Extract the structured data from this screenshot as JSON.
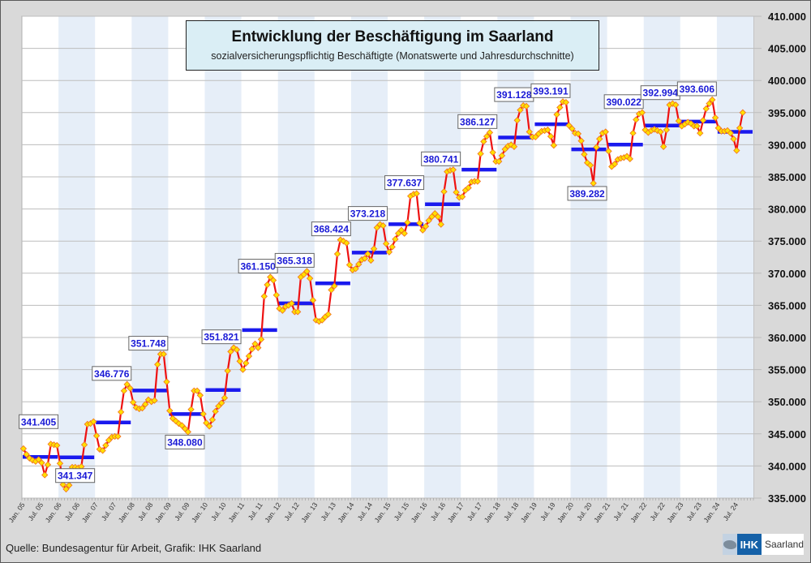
{
  "chart_data": {
    "type": "line",
    "title": "Entwicklung der Beschäftigung im Saarland",
    "subtitle": "sozialversicherungspflichtig Beschäftigte (Monatswerte und Jahresdurchschnitte)",
    "xlabel": "",
    "ylabel": "",
    "ylim": [
      335000,
      410000
    ],
    "y_ticks": [
      "335.000",
      "340.000",
      "345.000",
      "350.000",
      "355.000",
      "360.000",
      "365.000",
      "370.000",
      "375.000",
      "380.000",
      "385.000",
      "390.000",
      "395.000",
      "400.000",
      "405.000",
      "410.000"
    ],
    "y_tick_values": [
      335000,
      340000,
      345000,
      350000,
      355000,
      360000,
      365000,
      370000,
      375000,
      380000,
      385000,
      390000,
      395000,
      400000,
      405000,
      410000
    ],
    "y_axis_position": "right",
    "grid": true,
    "x_tick_labels": [
      "Jan. 05",
      "Jul. 05",
      "Jan. 06",
      "Jul. 06",
      "Jan. 07",
      "Jul. 07",
      "Jan. 08",
      "Jul. 08",
      "Jan. 09",
      "Jul. 09",
      "Jan. 10",
      "Jul. 10",
      "Jan. 11",
      "Jul. 11",
      "Jan. 12",
      "Jul. 12",
      "Jan. 13",
      "Jul. 13",
      "Jan. 14",
      "Jul. 14",
      "Jan. 15",
      "Jul. 15",
      "Jan. 16",
      "Jul. 16",
      "Jan. 17",
      "Jul. 17",
      "Jan. 18",
      "Jul. 18",
      "Jan. 19",
      "Jul. 19",
      "Jan. 20",
      "Jul. 20",
      "Jan. 21",
      "Jul. 21",
      "Jan. 22",
      "Jul. 22",
      "Jan. 23",
      "Jul. 23",
      "Jan. 24",
      "Jul. 24"
    ],
    "years": [
      2005,
      2006,
      2007,
      2008,
      2009,
      2010,
      2011,
      2012,
      2013,
      2014,
      2015,
      2016,
      2017,
      2018,
      2019,
      2020,
      2021,
      2022,
      2023,
      2024
    ],
    "series": [
      {
        "name": "Monatswerte",
        "color": "#ee1111",
        "marker_color": "#ffe000",
        "values": [
          342700,
          341800,
          341200,
          340900,
          340700,
          341000,
          340500,
          338600,
          340200,
          343400,
          343300,
          343200,
          340400,
          337100,
          336400,
          337000,
          339800,
          339800,
          339700,
          339900,
          343300,
          346500,
          346600,
          346900,
          344700,
          342600,
          342400,
          343200,
          344000,
          344500,
          344600,
          344600,
          348400,
          351700,
          352700,
          352100,
          349900,
          349100,
          348900,
          349000,
          349600,
          350300,
          350000,
          350200,
          355800,
          357400,
          357400,
          353100,
          348600,
          347400,
          347000,
          346600,
          346300,
          345800,
          345300,
          348800,
          351700,
          351700,
          351000,
          348100,
          346700,
          346200,
          347200,
          348500,
          349300,
          349800,
          350600,
          354800,
          357800,
          358400,
          358100,
          356300,
          355000,
          356000,
          357100,
          358200,
          359000,
          358400,
          359700,
          366400,
          368200,
          369400,
          368900,
          366600,
          364500,
          364200,
          364800,
          365000,
          365300,
          364000,
          364000,
          369400,
          369800,
          370300,
          369200,
          365800,
          362700,
          362500,
          362700,
          363200,
          363600,
          367400,
          368000,
          373000,
          375200,
          375000,
          374700,
          371300,
          370500,
          370700,
          371400,
          372100,
          372300,
          373000,
          372000,
          373800,
          377100,
          377600,
          377400,
          374600,
          373300,
          374100,
          375300,
          376200,
          376700,
          376200,
          377900,
          382000,
          382300,
          382400,
          377800,
          376700,
          377300,
          378200,
          378800,
          379300,
          378800,
          377600,
          382700,
          385800,
          386000,
          386100,
          382600,
          381800,
          381900,
          382900,
          383300,
          384200,
          384300,
          384300,
          388600,
          390500,
          391300,
          391900,
          388800,
          387400,
          387400,
          388300,
          389300,
          389800,
          390000,
          389700,
          393800,
          395400,
          396100,
          396000,
          392000,
          391200,
          391200,
          391700,
          392100,
          392200,
          392300,
          391300,
          389900,
          394700,
          395800,
          396700,
          396600,
          393000,
          392500,
          391800,
          391700,
          390600,
          388500,
          387200,
          386800,
          384000,
          389600,
          390900,
          391800,
          392000,
          389000,
          386600,
          387000,
          387700,
          387900,
          388000,
          388200,
          387800,
          391800,
          393900,
          394800,
          395000,
          392300,
          391900,
          392200,
          392400,
          392200,
          392000,
          389700,
          392300,
          396200,
          396400,
          396200,
          393700,
          392900,
          393200,
          393500,
          393300,
          392900,
          392900,
          391800,
          393800,
          395600,
          396400,
          397000,
          394200,
          392600,
          392100,
          392100,
          392200,
          391800,
          390900,
          389100,
          392600,
          395000
        ]
      },
      {
        "name": "Jahresdurchschnitte",
        "color": "#1a1aee",
        "values": [
          341405,
          341347,
          346776,
          351748,
          348080,
          351821,
          361150,
          365318,
          368424,
          373218,
          377637,
          380741,
          386127,
          391128,
          393191,
          389282,
          390022,
          392994,
          393606,
          392000
        ]
      }
    ],
    "annotations": [
      {
        "year": 2005,
        "text": "341.405",
        "position": "above"
      },
      {
        "year": 2006,
        "text": "341.347",
        "position": "below"
      },
      {
        "year": 2007,
        "text": "346.776",
        "position": "above"
      },
      {
        "year": 2008,
        "text": "351.748",
        "position": "above"
      },
      {
        "year": 2009,
        "text": "348.080",
        "position": "below"
      },
      {
        "year": 2010,
        "text": "351.821",
        "position": "above"
      },
      {
        "year": 2011,
        "text": "361.150",
        "position": "above"
      },
      {
        "year": 2012,
        "text": "365.318",
        "position": "above"
      },
      {
        "year": 2013,
        "text": "368.424",
        "position": "above"
      },
      {
        "year": 2014,
        "text": "373.218",
        "position": "above"
      },
      {
        "year": 2015,
        "text": "377.637",
        "position": "above"
      },
      {
        "year": 2016,
        "text": "380.741",
        "position": "above"
      },
      {
        "year": 2017,
        "text": "386.127",
        "position": "above"
      },
      {
        "year": 2018,
        "text": "391.128",
        "position": "above"
      },
      {
        "year": 2019,
        "text": "393.191",
        "position": "above"
      },
      {
        "year": 2020,
        "text": "389.282",
        "position": "below"
      },
      {
        "year": 2021,
        "text": "390.022",
        "position": "above"
      },
      {
        "year": 2022,
        "text": "392.994",
        "position": "above"
      },
      {
        "year": 2023,
        "text": "393.606",
        "position": "above"
      }
    ],
    "band_color": "#e6eef8",
    "legend": "none"
  },
  "footer": {
    "source": "Quelle: Bundesagentur für Arbeit, Grafik: IHK Saarland",
    "logo_ihk": "IHK",
    "logo_region": "Saarland"
  }
}
